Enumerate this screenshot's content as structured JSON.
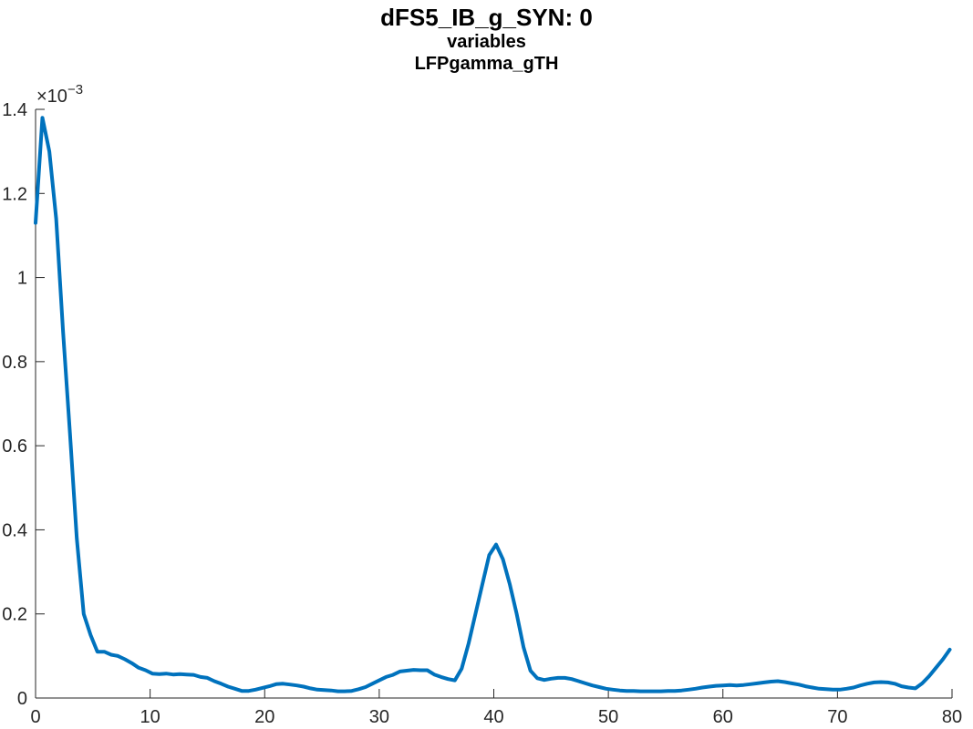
{
  "chart_data": {
    "type": "line",
    "title": [
      "dFS5_IB_g_SYN: 0",
      "variables",
      "LFPgamma_gTH"
    ],
    "xlabel": "",
    "ylabel": "",
    "xlim": [
      0,
      80
    ],
    "ylim": [
      0,
      0.0014
    ],
    "exponent_base": "×10",
    "exponent_power": "−3",
    "grid": false,
    "legend": "none",
    "color": "#0072BD",
    "x_ticks": [
      0,
      10,
      20,
      30,
      40,
      50,
      60,
      70,
      80
    ],
    "x_tick_labels": [
      "0",
      "10",
      "20",
      "30",
      "40",
      "50",
      "60",
      "70",
      "80"
    ],
    "y_ticks": [
      0,
      0.0002,
      0.0004,
      0.0006,
      0.0008,
      0.001,
      0.0012,
      0.0014
    ],
    "y_tick_labels": [
      "0",
      "0.2",
      "0.4",
      "0.6",
      "0.8",
      "1",
      "1.2",
      "1.4"
    ],
    "series": [
      {
        "x": [
          0,
          0.6,
          1.2,
          1.8,
          2.4,
          3.0,
          3.6,
          4.2,
          4.8,
          5.4,
          6.0,
          6.6,
          7.2,
          7.8,
          8.4,
          9.0,
          9.6,
          10.2,
          10.8,
          11.4,
          12.0,
          12.6,
          13.2,
          13.8,
          14.4,
          15.0,
          15.6,
          16.2,
          16.8,
          17.4,
          18.0,
          18.6,
          19.2,
          19.8,
          20.4,
          21.0,
          21.6,
          22.2,
          22.8,
          23.4,
          24.0,
          24.6,
          25.2,
          25.8,
          26.4,
          27.0,
          27.6,
          28.2,
          28.8,
          29.4,
          30.0,
          30.6,
          31.2,
          31.8,
          32.4,
          33.0,
          33.6,
          34.2,
          34.8,
          35.4,
          36.0,
          36.6,
          37.2,
          37.8,
          38.4,
          39.0,
          39.6,
          40.2,
          40.8,
          41.4,
          42.0,
          42.6,
          43.2,
          43.8,
          44.4,
          45.0,
          45.6,
          46.2,
          46.8,
          47.4,
          48.0,
          48.6,
          49.2,
          49.8,
          50.4,
          51.0,
          51.6,
          52.2,
          52.8,
          53.4,
          54.0,
          54.6,
          55.2,
          55.8,
          56.4,
          57.0,
          57.6,
          58.2,
          58.8,
          59.4,
          60.0,
          60.6,
          61.2,
          61.8,
          62.4,
          63.0,
          63.6,
          64.2,
          64.8,
          65.4,
          66.0,
          66.6,
          67.2,
          67.8,
          68.4,
          69.0,
          69.6,
          70.2,
          70.8,
          71.4,
          72.0,
          72.6,
          73.2,
          73.8,
          74.4,
          75.0,
          75.6,
          76.2,
          76.8,
          77.4,
          78.0,
          78.6,
          79.2,
          79.8
        ],
        "values": [
          0.00113,
          0.00138,
          0.0013,
          0.00114,
          0.00087,
          0.00063,
          0.00038,
          0.0002,
          0.00015,
          0.00011,
          0.00011,
          0.000103,
          0.0001,
          9.2e-05,
          8.3e-05,
          7.2e-05,
          6.6e-05,
          5.8e-05,
          5.7e-05,
          5.8e-05,
          5.6e-05,
          5.7e-05,
          5.6e-05,
          5.5e-05,
          5e-05,
          4.8e-05,
          4e-05,
          3.4e-05,
          2.7e-05,
          2.2e-05,
          1.7e-05,
          1.7e-05,
          2e-05,
          2.4e-05,
          2.8e-05,
          3.3e-05,
          3.4e-05,
          3.2e-05,
          3e-05,
          2.7e-05,
          2.3e-05,
          2e-05,
          1.9e-05,
          1.8e-05,
          1.6e-05,
          1.6e-05,
          1.7e-05,
          2.1e-05,
          2.6e-05,
          3.4e-05,
          4.2e-05,
          5e-05,
          5.5e-05,
          6.3e-05,
          6.5e-05,
          6.7e-05,
          6.6e-05,
          6.6e-05,
          5.6e-05,
          5e-05,
          4.5e-05,
          4.2e-05,
          7e-05,
          0.00013,
          0.0002,
          0.00027,
          0.00034,
          0.000365,
          0.00033,
          0.00027,
          0.0002,
          0.00012,
          6.5e-05,
          4.7e-05,
          4.3e-05,
          4.6e-05,
          4.8e-05,
          4.8e-05,
          4.5e-05,
          4e-05,
          3.5e-05,
          3e-05,
          2.6e-05,
          2.2e-05,
          2e-05,
          1.8e-05,
          1.7e-05,
          1.7e-05,
          1.6e-05,
          1.6e-05,
          1.6e-05,
          1.6e-05,
          1.7e-05,
          1.7e-05,
          1.8e-05,
          2e-05,
          2.2e-05,
          2.5e-05,
          2.7e-05,
          2.9e-05,
          3e-05,
          3.1e-05,
          3e-05,
          3.1e-05,
          3.3e-05,
          3.5e-05,
          3.7e-05,
          3.9e-05,
          4e-05,
          3.8e-05,
          3.5e-05,
          3.2e-05,
          2.8e-05,
          2.5e-05,
          2.2e-05,
          2.1e-05,
          2e-05,
          2e-05,
          2.2e-05,
          2.5e-05,
          3e-05,
          3.4e-05,
          3.7e-05,
          3.8e-05,
          3.7e-05,
          3.4e-05,
          2.8e-05,
          2.5e-05,
          2.3e-05,
          3.5e-05,
          5.2e-05,
          7.2e-05,
          9.2e-05,
          0.000115
        ]
      }
    ]
  }
}
